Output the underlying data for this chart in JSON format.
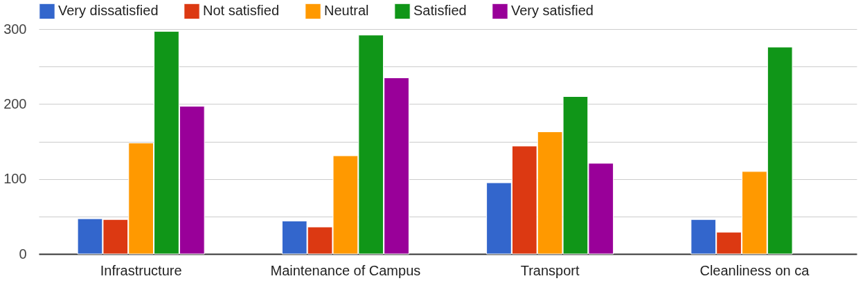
{
  "chart_data": {
    "type": "bar",
    "categories": [
      "Infrastructure",
      "Maintenance of Campus",
      "Transport",
      "Cleanliness on ca"
    ],
    "series": [
      {
        "name": "Very dissatisfied",
        "color": "#3366cc",
        "values": [
          47,
          44,
          95,
          46
        ]
      },
      {
        "name": "Not satisfied",
        "color": "#dc3912",
        "values": [
          46,
          36,
          144,
          29
        ]
      },
      {
        "name": "Neutral",
        "color": "#ff9900",
        "values": [
          148,
          131,
          163,
          110
        ]
      },
      {
        "name": "Satisfied",
        "color": "#109618",
        "values": [
          297,
          292,
          210,
          276
        ]
      },
      {
        "name": "Very satisfied",
        "color": "#990099",
        "values": [
          197,
          235,
          121,
          null
        ]
      }
    ],
    "ylim": [
      0,
      300
    ],
    "yticks": [
      0,
      {
        "value": 50,
        "label": null
      },
      100,
      {
        "value": 150,
        "label": null
      },
      200,
      {
        "value": 250,
        "label": null
      },
      300
    ],
    "grid": "y",
    "legend": "top left"
  }
}
